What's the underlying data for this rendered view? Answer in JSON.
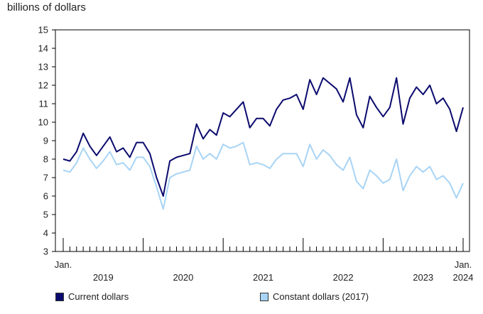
{
  "chart_data": {
    "type": "line",
    "ylabel": "billions of dollars",
    "ylim": [
      3,
      15
    ],
    "yticks": [
      3,
      4,
      5,
      6,
      7,
      8,
      9,
      10,
      11,
      12,
      13,
      14,
      15
    ],
    "x_start": "2019-01",
    "x_end": "2024-01",
    "x_labels": [
      {
        "top": "Jan.",
        "bottom": "",
        "date": "2019-01"
      },
      {
        "top": "",
        "bottom": "2019",
        "date": "2019-07"
      },
      {
        "top": "",
        "bottom": "2020",
        "date": "2020-07"
      },
      {
        "top": "",
        "bottom": "2021",
        "date": "2021-07"
      },
      {
        "top": "",
        "bottom": "2022",
        "date": "2022-07"
      },
      {
        "top": "",
        "bottom": "2023",
        "date": "2023-07"
      },
      {
        "top": "Jan.",
        "bottom": "2024",
        "date": "2024-01"
      }
    ],
    "grid": false,
    "legend_position": "bottom",
    "series": [
      {
        "name": "Current dollars",
        "color": "#0a0a6e",
        "values": [
          8.0,
          7.9,
          8.4,
          9.4,
          8.7,
          8.2,
          8.7,
          9.2,
          8.4,
          8.6,
          8.1,
          8.9,
          8.9,
          8.3,
          7.0,
          6.0,
          7.9,
          8.1,
          8.2,
          8.3,
          9.9,
          9.1,
          9.6,
          9.3,
          10.5,
          10.3,
          10.7,
          11.1,
          9.7,
          10.2,
          10.2,
          9.8,
          10.7,
          11.2,
          11.3,
          11.5,
          10.7,
          12.3,
          11.5,
          12.4,
          12.1,
          11.8,
          11.1,
          12.4,
          10.4,
          9.7,
          11.4,
          10.8,
          10.3,
          10.8,
          12.4,
          9.9,
          11.3,
          11.9,
          11.5,
          12.0,
          11.0,
          11.3,
          10.7,
          9.5,
          10.8
        ]
      },
      {
        "name": "Constant dollars (2017)",
        "color": "#a8d4f5",
        "values": [
          7.4,
          7.3,
          7.8,
          8.6,
          8.0,
          7.5,
          7.9,
          8.4,
          7.7,
          7.8,
          7.4,
          8.1,
          8.1,
          7.6,
          6.5,
          5.3,
          7.0,
          7.2,
          7.3,
          7.4,
          8.7,
          8.0,
          8.3,
          8.0,
          8.8,
          8.6,
          8.7,
          8.9,
          7.7,
          7.8,
          7.7,
          7.5,
          8.0,
          8.3,
          8.3,
          8.3,
          7.6,
          8.8,
          8.0,
          8.5,
          8.2,
          7.7,
          7.4,
          8.1,
          6.8,
          6.4,
          7.4,
          7.1,
          6.7,
          6.9,
          8.0,
          6.3,
          7.1,
          7.6,
          7.3,
          7.6,
          6.9,
          7.1,
          6.7,
          5.9,
          6.7
        ]
      }
    ]
  }
}
